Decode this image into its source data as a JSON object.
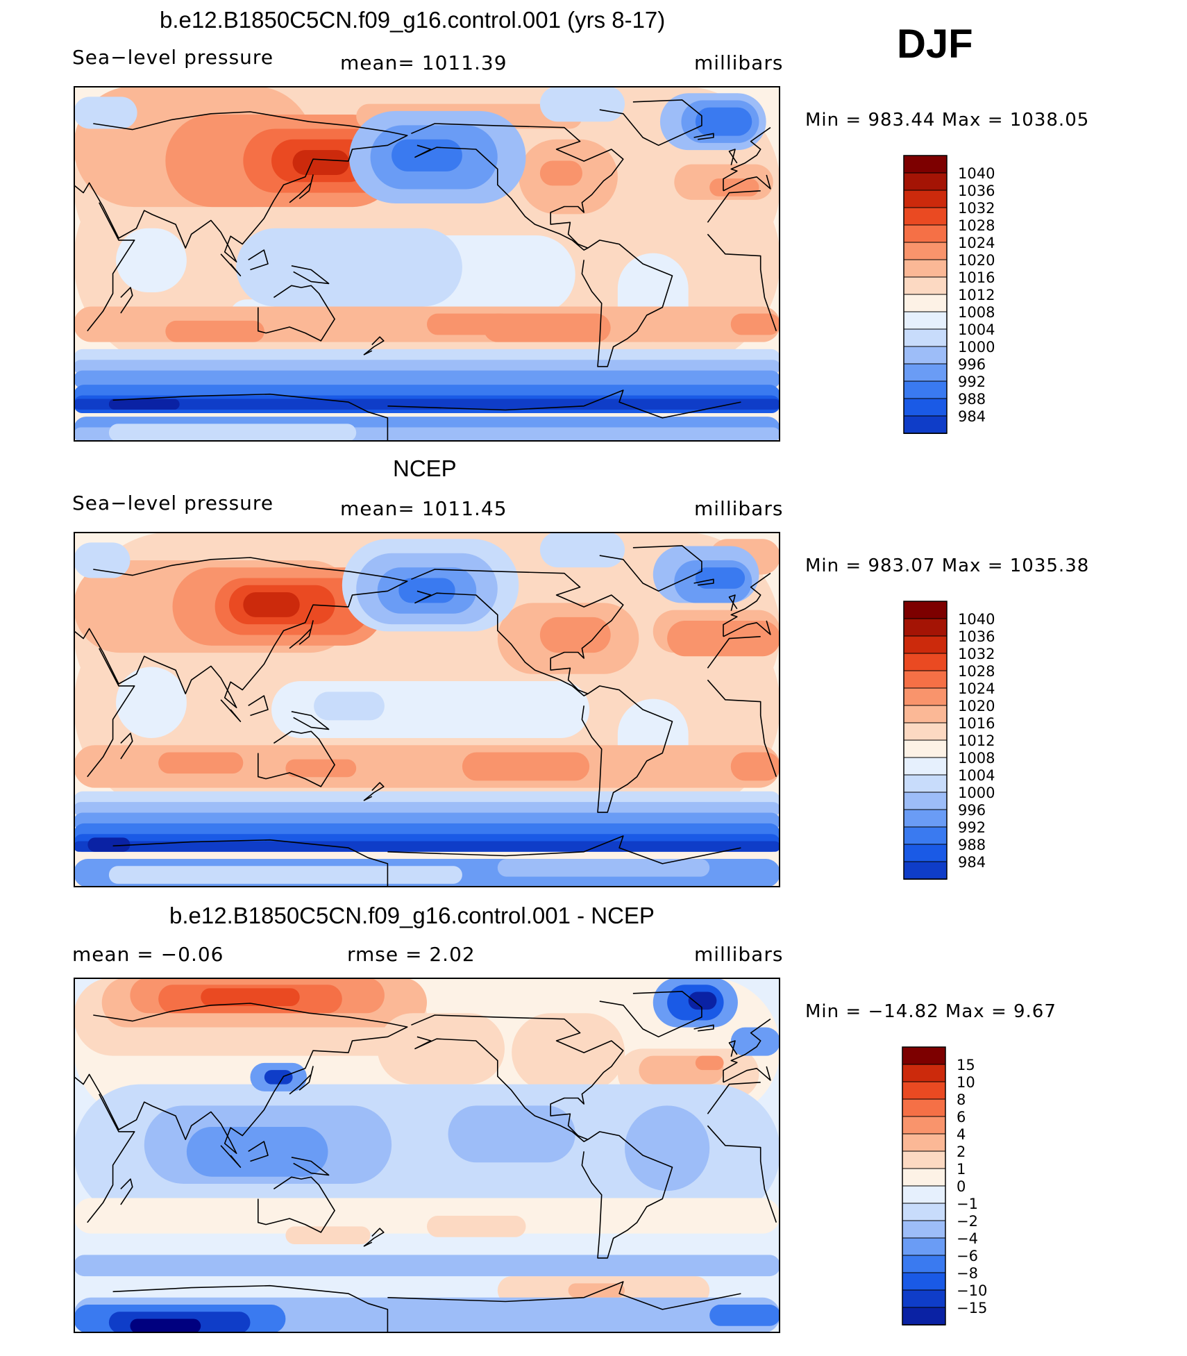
{
  "season": "DJF",
  "colors": {
    "pressure": [
      "#00007f",
      "#0a22a4",
      "#0f3dc8",
      "#1a5ae6",
      "#3a7af0",
      "#6a9cf5",
      "#9dbdf8",
      "#c8dcfb",
      "#e6f0fd",
      "#fdf2e6",
      "#fcd9c2",
      "#fbb896",
      "#f9946c",
      "#f57046",
      "#ea4a22",
      "#cc2a0c",
      "#a41405",
      "#7d0000"
    ],
    "difference": [
      "#00007f",
      "#0a22a4",
      "#0f3dc8",
      "#1a5ae6",
      "#3a7af0",
      "#6a9cf5",
      "#9dbdf8",
      "#c8dcfb",
      "#e6f0fd",
      "#fdf2e6",
      "#fcd9c2",
      "#fbb896",
      "#f9946c",
      "#f57046",
      "#ea4a22",
      "#cc2a0c",
      "#7d0000"
    ]
  },
  "panels": [
    {
      "title": "b.e12.B1850C5CN.f09_g16.control.001 (yrs 8-17)",
      "left_label": "Sea−level pressure",
      "center_label": "mean=  1011.39",
      "units": "millibars",
      "minmax": "Min  =  983.44  Max  =  1038.05",
      "colorbar_labels": [
        "1040",
        "1036",
        "1032",
        "1028",
        "1024",
        "1020",
        "1016",
        "1012",
        "1008",
        "1004",
        "1000",
        "996",
        "992",
        "988",
        "984"
      ],
      "map_kind": "model"
    },
    {
      "title": "NCEP",
      "left_label": "Sea−level pressure",
      "center_label": "mean=  1011.45",
      "units": "millibars",
      "minmax": "Min  =  983.07  Max  =  1035.38",
      "colorbar_labels": [
        "1040",
        "1036",
        "1032",
        "1028",
        "1024",
        "1020",
        "1016",
        "1012",
        "1008",
        "1004",
        "1000",
        "996",
        "992",
        "988",
        "984"
      ],
      "map_kind": "obs"
    },
    {
      "title": "b.e12.B1850C5CN.f09_g16.control.001 - NCEP",
      "left_label": "mean  =     −0.06",
      "center_label": "rmse  =      2.02",
      "units": "millibars",
      "minmax": "Min  =  −14.82  Max  =      9.67",
      "colorbar_labels": [
        "15",
        "10",
        "8",
        "6",
        "4",
        "2",
        "1",
        "0",
        "−1",
        "−2",
        "−4",
        "−6",
        "−8",
        "−10",
        "−15"
      ],
      "map_kind": "diff"
    }
  ]
}
